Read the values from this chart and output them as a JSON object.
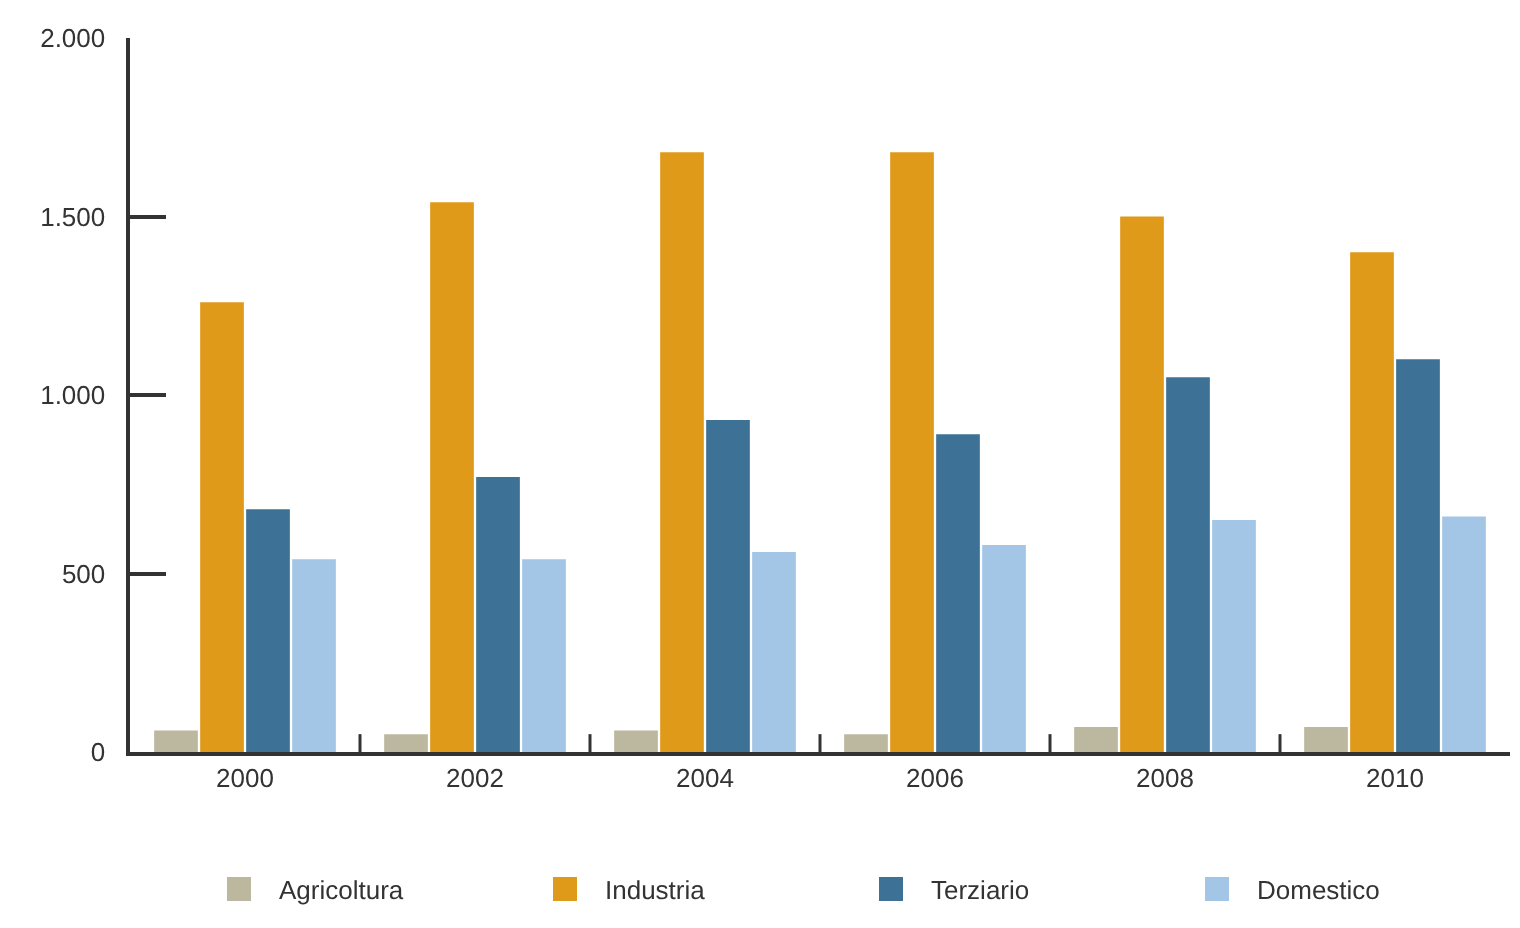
{
  "chart_data": {
    "type": "bar",
    "categories": [
      "2000",
      "2002",
      "2004",
      "2006",
      "2008",
      "2010"
    ],
    "series": [
      {
        "name": "Agricoltura",
        "color": "#bcb8a0",
        "values": [
          60,
          50,
          60,
          50,
          70,
          70
        ]
      },
      {
        "name": "Industria",
        "color": "#e09a1a",
        "values": [
          1260,
          1540,
          1680,
          1680,
          1500,
          1400
        ]
      },
      {
        "name": "Terziario",
        "color": "#3e7196",
        "values": [
          680,
          770,
          930,
          890,
          1050,
          1100
        ]
      },
      {
        "name": "Domestico",
        "color": "#a3c5e6",
        "values": [
          540,
          540,
          560,
          580,
          650,
          660
        ]
      }
    ],
    "ylim": [
      0,
      2000
    ],
    "yticks": [
      0,
      500,
      {
        "value": 1000,
        "label": "1.000"
      },
      {
        "value": 1500,
        "label": "1.500"
      },
      {
        "value": 2000,
        "label": "2.000"
      }
    ],
    "legend": "bottom"
  }
}
